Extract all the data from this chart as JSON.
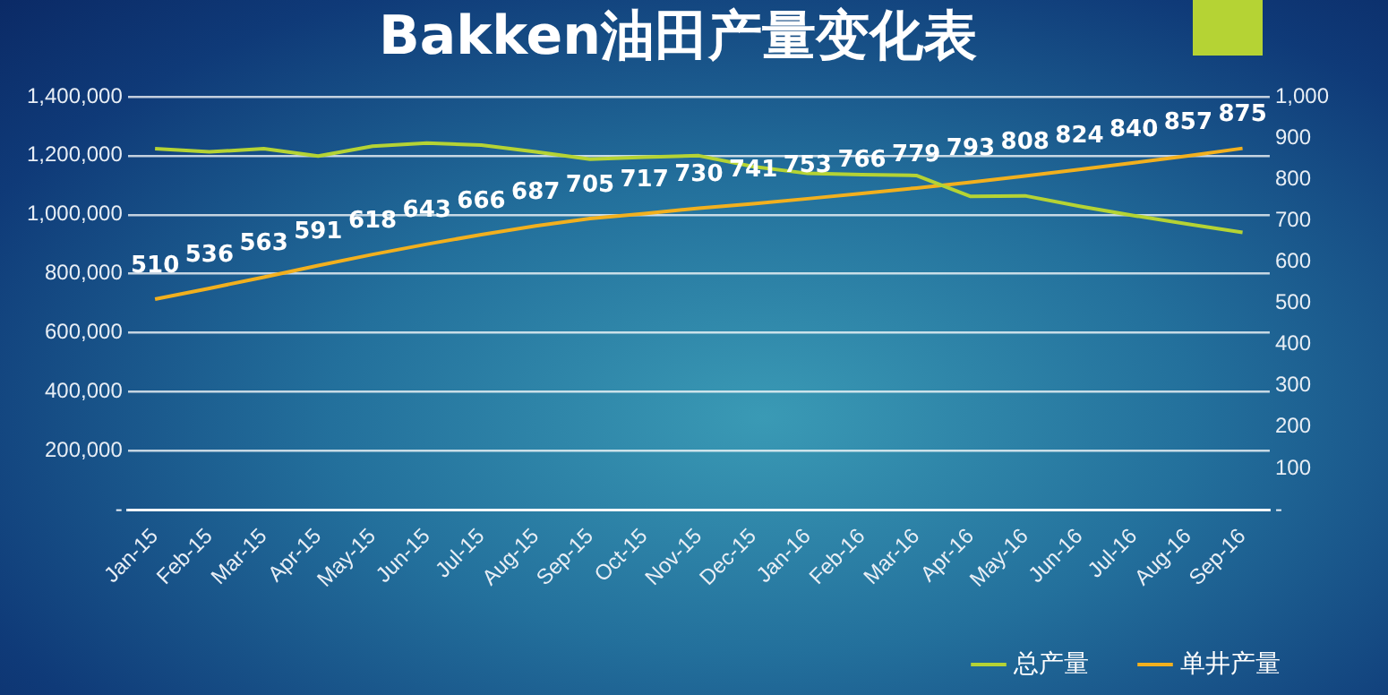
{
  "chart_data": {
    "type": "line",
    "title": "Bakken油田产量变化表",
    "categories": [
      "Jan-15",
      "Feb-15",
      "Mar-15",
      "Apr-15",
      "May-15",
      "Jun-15",
      "Jul-15",
      "Aug-15",
      "Sep-15",
      "Oct-15",
      "Nov-15",
      "Dec-15",
      "Jan-16",
      "Feb-16",
      "Mar-16",
      "Apr-16",
      "May-16",
      "Jun-16",
      "Jul-16",
      "Aug-16",
      "Sep-16"
    ],
    "series": [
      {
        "name": "总产量",
        "color": "#b5d334",
        "values": [
          1224000,
          1213000,
          1224000,
          1199000,
          1232000,
          1243000,
          1236000,
          1213000,
          1188000,
          1195000,
          1200000,
          1163000,
          1140000,
          1136000,
          1133000,
          1062000,
          1064000,
          1029000,
          997000,
          968000,
          940000
        ]
      },
      {
        "name": "单井产量",
        "color": "#f2b01e",
        "axis": "y2",
        "data_labels": true,
        "values": [
          510,
          536,
          563,
          591,
          618,
          643,
          666,
          687,
          705,
          717,
          730,
          741,
          753,
          766,
          779,
          793,
          808,
          824,
          840,
          857,
          875
        ]
      }
    ],
    "ylim": [
      0,
      1400000
    ],
    "yticks": [
      {
        "value": 0,
        "label": "-"
      },
      {
        "value": 200000,
        "label": "200,000"
      },
      {
        "value": 400000,
        "label": "400,000"
      },
      {
        "value": 600000,
        "label": "600,000"
      },
      {
        "value": 800000,
        "label": "800,000"
      },
      {
        "value": 1000000,
        "label": "1,000,000"
      },
      {
        "value": 1200000,
        "label": "1,200,000"
      },
      {
        "value": 1400000,
        "label": "1,400,000"
      }
    ],
    "y2lim": [
      0,
      1000
    ],
    "y2ticks": [
      {
        "value": 0,
        "label": "-"
      },
      100,
      200,
      300,
      400,
      500,
      600,
      700,
      800,
      900,
      {
        "value": 1000,
        "label": "1,000"
      }
    ],
    "grid": "y",
    "legend": "bottom right",
    "marker": "none",
    "line_style": "solid"
  }
}
